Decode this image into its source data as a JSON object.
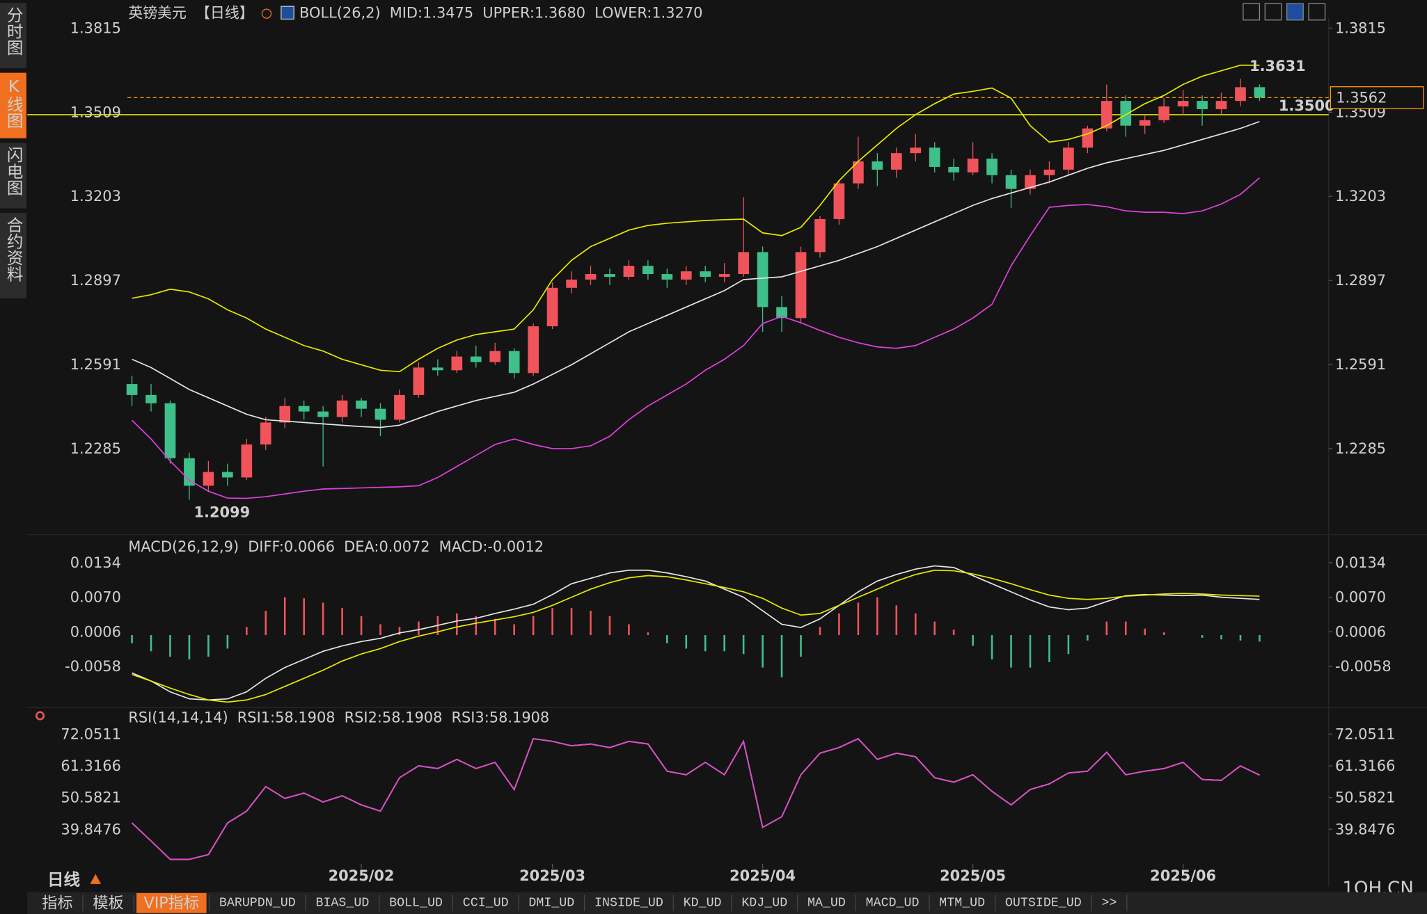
{
  "sidebar": {
    "items": [
      "分时图",
      "K线图",
      "闪电图",
      "合约资料"
    ],
    "active": 1
  },
  "footer": {
    "period": "日线",
    "tabs": [
      "指标",
      "模板",
      "VIP指标",
      "BARUPDN_UD",
      "BIAS_UD",
      "BOLL_UD",
      "CCI_UD",
      "DMI_UD",
      "INSIDE_UD",
      "KD_UD",
      "KDJ_UD",
      "MA_UD",
      "MACD_UD",
      "MTM_UD",
      "OUTSIDE_UD",
      ">>"
    ],
    "active": 2,
    "watermark": "1QH.CN"
  },
  "chart_data": [
    {
      "type": "candlestick",
      "title": "英镑美元",
      "period": "【日线】",
      "indicator": "BOLL(26,2)",
      "up_color": "#f0535a",
      "down_color": "#3fbf8a",
      "last_price_color": "#ff9900",
      "ylim": [
        1.1998,
        1.3851
      ],
      "yticks": [
        1.2285,
        1.2591,
        1.2897,
        1.3203,
        1.3509,
        1.3815
      ],
      "xticks": [
        {
          "value": 12,
          "label": "2025/02"
        },
        {
          "value": 22,
          "label": "2025/03"
        },
        {
          "value": 33,
          "label": "2025/04"
        },
        {
          "value": 44,
          "label": "2025/05"
        },
        {
          "value": 55,
          "label": "2025/06"
        }
      ],
      "hlines": [
        {
          "value": 1.35,
          "label": "1.3500",
          "color": "#e8e800"
        }
      ],
      "candles": [
        [
          1.252,
          1.255,
          1.244,
          1.248
        ],
        [
          1.248,
          1.252,
          1.242,
          1.245
        ],
        [
          1.245,
          1.246,
          1.223,
          1.225
        ],
        [
          1.225,
          1.227,
          1.2099,
          1.215
        ],
        [
          1.215,
          1.224,
          1.213,
          1.22
        ],
        [
          1.22,
          1.223,
          1.215,
          1.218
        ],
        [
          1.218,
          1.232,
          1.217,
          1.23
        ],
        [
          1.23,
          1.24,
          1.228,
          1.238
        ],
        [
          1.238,
          1.247,
          1.236,
          1.244
        ],
        [
          1.244,
          1.246,
          1.239,
          1.242
        ],
        [
          1.242,
          1.244,
          1.222,
          1.24
        ],
        [
          1.24,
          1.248,
          1.238,
          1.246
        ],
        [
          1.246,
          1.247,
          1.24,
          1.243
        ],
        [
          1.243,
          1.245,
          1.233,
          1.239
        ],
        [
          1.239,
          1.25,
          1.238,
          1.248
        ],
        [
          1.248,
          1.26,
          1.247,
          1.258
        ],
        [
          1.258,
          1.261,
          1.255,
          1.257
        ],
        [
          1.257,
          1.264,
          1.256,
          1.262
        ],
        [
          1.262,
          1.266,
          1.258,
          1.26
        ],
        [
          1.26,
          1.267,
          1.259,
          1.264
        ],
        [
          1.264,
          1.265,
          1.254,
          1.256
        ],
        [
          1.256,
          1.274,
          1.255,
          1.273
        ],
        [
          1.273,
          1.289,
          1.272,
          1.287
        ],
        [
          1.287,
          1.293,
          1.285,
          1.29
        ],
        [
          1.29,
          1.295,
          1.288,
          1.292
        ],
        [
          1.292,
          1.294,
          1.288,
          1.291
        ],
        [
          1.291,
          1.297,
          1.29,
          1.295
        ],
        [
          1.295,
          1.297,
          1.29,
          1.292
        ],
        [
          1.292,
          1.294,
          1.287,
          1.29
        ],
        [
          1.29,
          1.295,
          1.288,
          1.293
        ],
        [
          1.293,
          1.295,
          1.289,
          1.291
        ],
        [
          1.291,
          1.296,
          1.289,
          1.292
        ],
        [
          1.292,
          1.32,
          1.291,
          1.3
        ],
        [
          1.3,
          1.302,
          1.271,
          1.28
        ],
        [
          1.28,
          1.284,
          1.271,
          1.276
        ],
        [
          1.276,
          1.302,
          1.274,
          1.3
        ],
        [
          1.3,
          1.313,
          1.298,
          1.312
        ],
        [
          1.312,
          1.326,
          1.31,
          1.325
        ],
        [
          1.325,
          1.342,
          1.323,
          1.333
        ],
        [
          1.333,
          1.336,
          1.324,
          1.33
        ],
        [
          1.33,
          1.338,
          1.327,
          1.336
        ],
        [
          1.336,
          1.343,
          1.333,
          1.338
        ],
        [
          1.338,
          1.34,
          1.329,
          1.331
        ],
        [
          1.331,
          1.334,
          1.326,
          1.329
        ],
        [
          1.329,
          1.34,
          1.328,
          1.334
        ],
        [
          1.334,
          1.336,
          1.325,
          1.328
        ],
        [
          1.328,
          1.33,
          1.316,
          1.323
        ],
        [
          1.323,
          1.33,
          1.321,
          1.328
        ],
        [
          1.328,
          1.333,
          1.325,
          1.33
        ],
        [
          1.33,
          1.34,
          1.328,
          1.338
        ],
        [
          1.338,
          1.346,
          1.336,
          1.345
        ],
        [
          1.345,
          1.361,
          1.344,
          1.355
        ],
        [
          1.355,
          1.357,
          1.342,
          1.346
        ],
        [
          1.346,
          1.35,
          1.343,
          1.348
        ],
        [
          1.348,
          1.356,
          1.347,
          1.353
        ],
        [
          1.353,
          1.359,
          1.35,
          1.355
        ],
        [
          1.355,
          1.357,
          1.346,
          1.352
        ],
        [
          1.352,
          1.358,
          1.35,
          1.355
        ],
        [
          1.355,
          1.3631,
          1.353,
          1.36
        ],
        [
          1.36,
          1.361,
          1.355,
          1.3562
        ]
      ],
      "series": [
        {
          "name": "MID:1.3475",
          "color": "#e6e6e6",
          "values": [
            1.261,
            1.258,
            1.254,
            1.25,
            1.247,
            1.244,
            1.241,
            1.239,
            1.2385,
            1.238,
            1.2375,
            1.237,
            1.2365,
            1.2362,
            1.237,
            1.2395,
            1.242,
            1.244,
            1.246,
            1.2475,
            1.249,
            1.252,
            1.2555,
            1.259,
            1.263,
            1.267,
            1.271,
            1.274,
            1.277,
            1.28,
            1.283,
            1.286,
            1.29,
            1.2905,
            1.291,
            1.293,
            1.295,
            1.297,
            1.2995,
            1.302,
            1.305,
            1.308,
            1.311,
            1.314,
            1.317,
            1.3195,
            1.3215,
            1.3235,
            1.3255,
            1.328,
            1.3305,
            1.3325,
            1.334,
            1.3355,
            1.337,
            1.339,
            1.341,
            1.343,
            1.345,
            1.3475
          ]
        },
        {
          "name": "UPPER:1.3680",
          "color": "#e8e800",
          "values": [
            1.2832,
            1.2845,
            1.2865,
            1.2855,
            1.283,
            1.279,
            1.276,
            1.272,
            1.269,
            1.266,
            1.264,
            1.261,
            1.259,
            1.257,
            1.2565,
            1.261,
            1.265,
            1.268,
            1.27,
            1.271,
            1.272,
            1.279,
            1.29,
            1.297,
            1.302,
            1.305,
            1.308,
            1.3097,
            1.3105,
            1.311,
            1.3115,
            1.3118,
            1.312,
            1.307,
            1.306,
            1.309,
            1.317,
            1.326,
            1.333,
            1.339,
            1.345,
            1.35,
            1.354,
            1.3575,
            1.3585,
            1.3597,
            1.356,
            1.346,
            1.34,
            1.341,
            1.343,
            1.346,
            1.35,
            1.354,
            1.357,
            1.361,
            1.364,
            1.366,
            1.368,
            1.368
          ]
        },
        {
          "name": "LOWER:1.3270",
          "color": "#e040e0",
          "values": [
            1.2388,
            1.232,
            1.224,
            1.217,
            1.213,
            1.2105,
            1.2104,
            1.211,
            1.212,
            1.213,
            1.2138,
            1.214,
            1.2142,
            1.2144,
            1.2146,
            1.215,
            1.218,
            1.222,
            1.226,
            1.23,
            1.232,
            1.23,
            1.2285,
            1.2285,
            1.2295,
            1.233,
            1.239,
            1.244,
            1.248,
            1.252,
            1.257,
            1.261,
            1.266,
            1.274,
            1.2766,
            1.2743,
            1.2715,
            1.269,
            1.267,
            1.2655,
            1.265,
            1.266,
            1.269,
            1.272,
            1.276,
            1.281,
            1.295,
            1.306,
            1.3163,
            1.317,
            1.3173,
            1.3165,
            1.315,
            1.3145,
            1.3145,
            1.314,
            1.315,
            1.3175,
            1.321,
            1.327
          ]
        }
      ]
    },
    {
      "type": "macd",
      "indicator": "MACD(26,12,9)",
      "up_color": "#f0535a",
      "down_color": "#3fbf8a",
      "ylim": [
        -0.0129,
        0.0157
      ],
      "yticks": [
        -0.0058,
        0.0006,
        {
          "value": 0.007,
          "label": "0.0070"
        },
        0.0134
      ],
      "series": [
        {
          "name": "DIFF:0.0066",
          "color": "#e6e6e6",
          "values": [
            -0.007,
            -0.0085,
            -0.0105,
            -0.0118,
            -0.012,
            -0.0118,
            -0.0105,
            -0.008,
            -0.006,
            -0.0045,
            -0.003,
            -0.002,
            -0.0012,
            -0.0006,
            0.0004,
            0.001,
            0.0018,
            0.0026,
            0.0031,
            0.004,
            0.0048,
            0.0057,
            0.0075,
            0.0095,
            0.0105,
            0.0115,
            0.012,
            0.012,
            0.0115,
            0.0108,
            0.01,
            0.0085,
            0.007,
            0.0045,
            0.002,
            0.0014,
            0.003,
            0.0055,
            0.008,
            0.01,
            0.0112,
            0.0122,
            0.0128,
            0.0125,
            0.011,
            0.0095,
            0.008,
            0.0065,
            0.0052,
            0.0047,
            0.005,
            0.0062,
            0.0073,
            0.0075,
            0.0074,
            0.0073,
            0.0074,
            0.007,
            0.0068,
            0.0066
          ]
        },
        {
          "name": "DEA:0.0072",
          "color": "#e8e800",
          "values": [
            -0.0073,
            -0.0085,
            -0.0098,
            -0.011,
            -0.012,
            -0.0124,
            -0.012,
            -0.011,
            -0.0095,
            -0.008,
            -0.0065,
            -0.0048,
            -0.0035,
            -0.0025,
            -0.0012,
            -0.0002,
            0.0006,
            0.0015,
            0.0022,
            0.0028,
            0.0034,
            0.0042,
            0.0055,
            0.007,
            0.0085,
            0.0097,
            0.0106,
            0.011,
            0.0108,
            0.0102,
            0.0095,
            0.0088,
            0.008,
            0.0068,
            0.005,
            0.0037,
            0.004,
            0.0055,
            0.007,
            0.0085,
            0.01,
            0.0112,
            0.012,
            0.0119,
            0.0113,
            0.0105,
            0.0095,
            0.0084,
            0.0074,
            0.0068,
            0.0066,
            0.0068,
            0.0072,
            0.0074,
            0.0076,
            0.0077,
            0.0076,
            0.0074,
            0.0073,
            0.0072
          ]
        }
      ],
      "histogram": {
        "name": "MACD:-0.0012",
        "color": "#e040e0",
        "values": [
          -0.0015,
          -0.003,
          -0.004,
          -0.0045,
          -0.004,
          -0.0025,
          0.0015,
          0.0045,
          0.007,
          0.0068,
          0.006,
          0.005,
          0.0035,
          0.002,
          0.0015,
          0.0025,
          0.0035,
          0.004,
          0.0035,
          0.003,
          0.002,
          0.0035,
          0.005,
          0.005,
          0.0045,
          0.0035,
          0.002,
          0.0005,
          -0.0015,
          -0.0025,
          -0.003,
          -0.003,
          -0.0035,
          -0.006,
          -0.0078,
          -0.004,
          0.0015,
          0.004,
          0.006,
          0.007,
          0.0055,
          0.004,
          0.0025,
          0.001,
          -0.002,
          -0.0045,
          -0.006,
          -0.006,
          -0.005,
          -0.0035,
          -0.001,
          0.0025,
          0.0025,
          0.0012,
          0.0005,
          0.0,
          -0.0005,
          -0.0008,
          -0.001,
          -0.0012
        ]
      }
    },
    {
      "type": "line",
      "indicator": "RSI(14,14,14)",
      "ylim": [
        26.6,
        75.8
      ],
      "yticks": [
        39.8476,
        50.5821,
        61.3166,
        72.0511
      ],
      "series": [
        {
          "name": "RSI1:58.1908",
          "color": "#e6e6e6",
          "values": [
            42.0,
            35.9,
            29.7,
            29.7,
            31.3,
            42.0,
            46.0,
            54.3,
            50.3,
            52.1,
            49.1,
            51.2,
            48.1,
            46.0,
            57.3,
            61.3,
            60.4,
            63.5,
            60.4,
            62.5,
            53.3,
            70.5,
            69.6,
            68.1,
            68.7,
            67.5,
            69.6,
            68.7,
            59.5,
            58.3,
            62.5,
            58.3,
            69.6,
            40.5,
            44.1,
            58.3,
            65.6,
            67.5,
            70.5,
            63.5,
            65.6,
            64.4,
            57.3,
            55.8,
            58.3,
            52.7,
            48.1,
            53.3,
            55.2,
            58.9,
            59.5,
            65.9,
            58.3,
            59.5,
            60.4,
            62.5,
            56.7,
            56.4,
            61.3,
            58.19
          ]
        },
        {
          "name": "RSI2:58.1908",
          "color": "#e8e800",
          "values": [
            42.0,
            35.9,
            29.7,
            29.7,
            31.3,
            42.0,
            46.0,
            54.3,
            50.3,
            52.1,
            49.1,
            51.2,
            48.1,
            46.0,
            57.3,
            61.3,
            60.4,
            63.5,
            60.4,
            62.5,
            53.3,
            70.5,
            69.6,
            68.1,
            68.7,
            67.5,
            69.6,
            68.7,
            59.5,
            58.3,
            62.5,
            58.3,
            69.6,
            40.5,
            44.1,
            58.3,
            65.6,
            67.5,
            70.5,
            63.5,
            65.6,
            64.4,
            57.3,
            55.8,
            58.3,
            52.7,
            48.1,
            53.3,
            55.2,
            58.9,
            59.5,
            65.9,
            58.3,
            59.5,
            60.4,
            62.5,
            56.7,
            56.4,
            61.3,
            58.19
          ]
        },
        {
          "name": "RSI3:58.1908",
          "color": "#e040e0",
          "values": [
            42.0,
            35.9,
            29.7,
            29.7,
            31.3,
            42.0,
            46.0,
            54.3,
            50.3,
            52.1,
            49.1,
            51.2,
            48.1,
            46.0,
            57.3,
            61.3,
            60.4,
            63.5,
            60.4,
            62.5,
            53.3,
            70.5,
            69.6,
            68.1,
            68.7,
            67.5,
            69.6,
            68.7,
            59.5,
            58.3,
            62.5,
            58.3,
            69.6,
            40.5,
            44.1,
            58.3,
            65.6,
            67.5,
            70.5,
            63.5,
            65.6,
            64.4,
            57.3,
            55.8,
            58.3,
            52.7,
            48.1,
            53.3,
            55.2,
            58.9,
            59.5,
            65.9,
            58.3,
            59.5,
            60.4,
            62.5,
            56.7,
            56.4,
            61.3,
            58.19
          ]
        }
      ]
    }
  ]
}
